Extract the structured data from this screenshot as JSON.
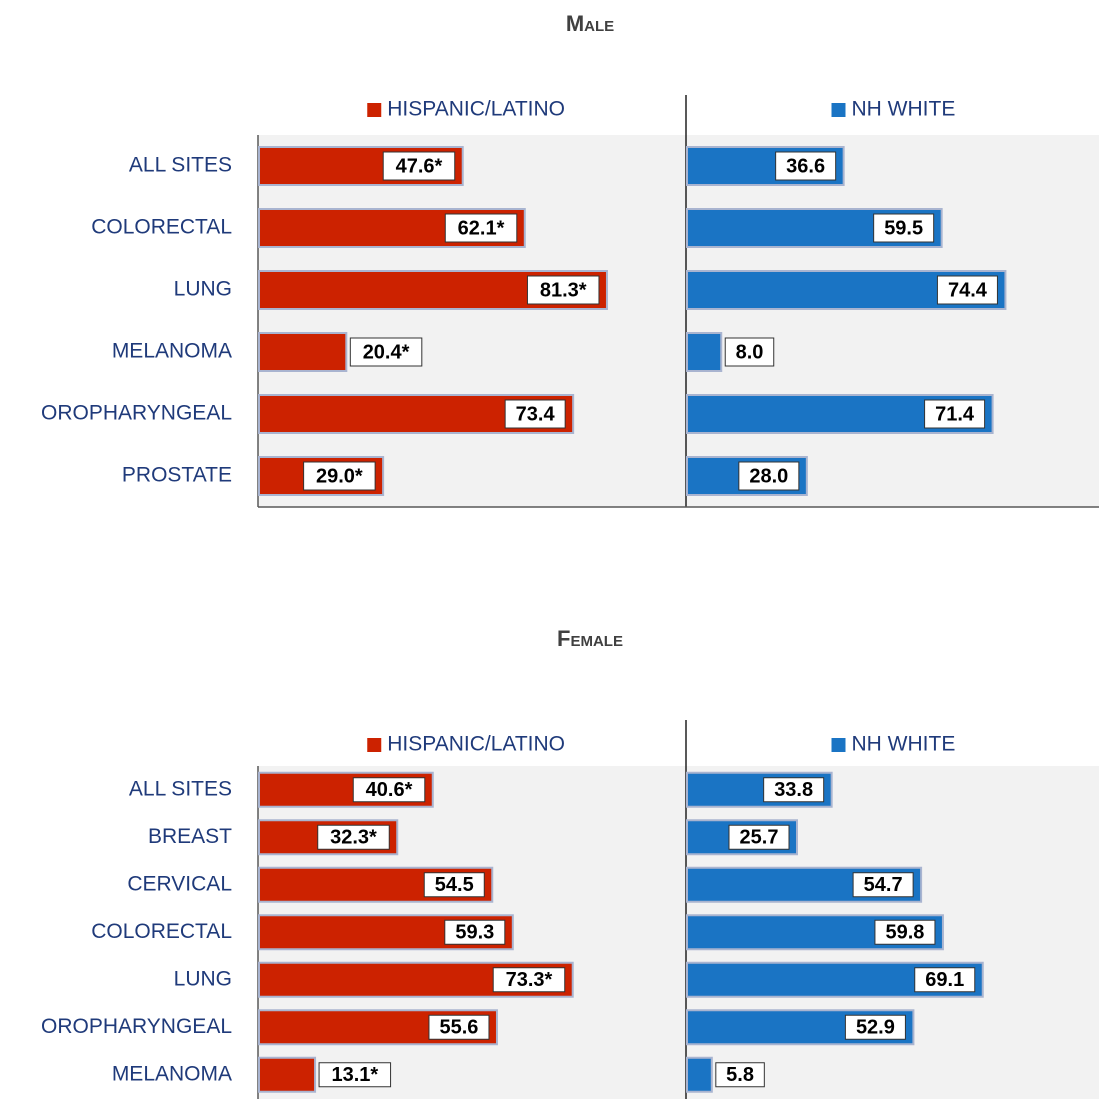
{
  "chart_data": [
    {
      "type": "bar",
      "title": "Male",
      "categories": [
        "ALL SITES",
        "COLORECTAL",
        "LUNG",
        "MELANOMA",
        "OROPHARYNGEAL",
        "PROSTATE"
      ],
      "xlim": [
        0,
        100
      ],
      "series": [
        {
          "name": "HISPANIC/LATINO",
          "color": "#cc2200",
          "values": [
            47.6,
            62.1,
            81.3,
            20.4,
            73.4,
            29.0
          ],
          "value_labels": [
            "47.6*",
            "62.1*",
            "81.3*",
            "20.4*",
            "73.4",
            "29.0*"
          ]
        },
        {
          "name": "NH WHITE",
          "color": "#1a74c4",
          "values": [
            36.6,
            59.5,
            74.4,
            8.0,
            71.4,
            28.0
          ],
          "value_labels": [
            "36.6",
            "59.5",
            "74.4",
            "8.0",
            "71.4",
            "28.0"
          ]
        }
      ]
    },
    {
      "type": "bar",
      "title": "Female",
      "categories": [
        "ALL SITES",
        "BREAST",
        "CERVICAL",
        "COLORECTAL",
        "LUNG",
        "OROPHARYNGEAL",
        "MELANOMA"
      ],
      "xlim": [
        0,
        100
      ],
      "series": [
        {
          "name": "HISPANIC/LATINO",
          "color": "#cc2200",
          "values": [
            40.6,
            32.3,
            54.5,
            59.3,
            73.3,
            55.6,
            13.1
          ],
          "value_labels": [
            "40.6*",
            "32.3*",
            "54.5",
            "59.3",
            "73.3*",
            "55.6",
            "13.1*"
          ]
        },
        {
          "name": "NH WHITE",
          "color": "#1a74c4",
          "values": [
            33.8,
            25.7,
            54.7,
            59.8,
            69.1,
            52.9,
            5.8
          ],
          "value_labels": [
            "33.8",
            "25.7",
            "54.7",
            "59.8",
            "69.1",
            "52.9",
            "5.8"
          ]
        }
      ]
    }
  ]
}
